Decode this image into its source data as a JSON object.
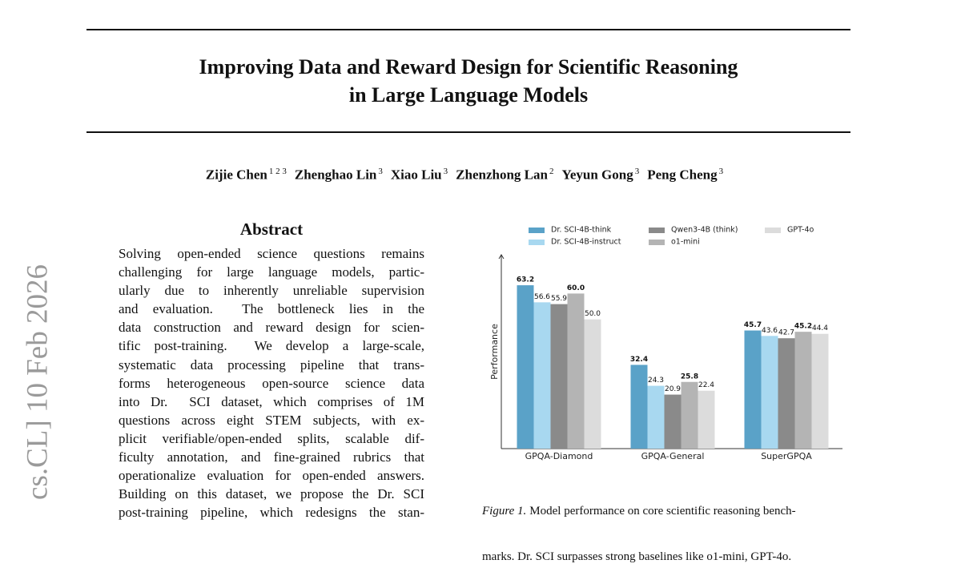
{
  "side_stamp": "cs.CL]  10 Feb 2026",
  "header": {
    "title": [
      "Improving Data and Reward Design for Scientific Reasoning",
      "in Large Language Models"
    ]
  },
  "authors": [
    {
      "name": "Zijie Chen",
      "affil": "1 2 3"
    },
    {
      "name": "Zhenghao Lin",
      "affil": "3"
    },
    {
      "name": "Xiao Liu",
      "affil": "3"
    },
    {
      "name": "Zhenzhong Lan",
      "affil": "2"
    },
    {
      "name": "Yeyun Gong",
      "affil": "3"
    },
    {
      "name": "Peng Cheng",
      "affil": "3"
    }
  ],
  "abstract": {
    "heading": "Abstract",
    "lines": [
      "Solving open-ended science questions remains",
      "challenging for large language models, partic-",
      "ularly due to inherently unreliable supervision",
      "and evaluation.  The bottleneck lies in the",
      "data construction and reward design for scien-",
      "tific post-training.  We develop a large-scale,",
      "systematic data processing pipeline that trans-",
      "forms heterogeneous open-source science data",
      "into Dr.  SCI dataset, which comprises of 1M",
      "questions across eight STEM subjects, with ex-",
      "plicit verifiable/open-ended splits, scalable dif-",
      "ficulty annotation, and fine-grained rubrics that",
      "operationalize evaluation for open-ended answers.",
      "Building on this dataset, we propose the Dr. SCI",
      "post-training pipeline, which redesigns the stan-"
    ]
  },
  "figure": {
    "chart_data": {
      "type": "bar",
      "y_label": "Performance",
      "categories": [
        "GPQA-Diamond",
        "GPQA-General",
        "SuperGPQA"
      ],
      "ylim": [
        0,
        75
      ],
      "series": [
        {
          "name": "Dr. SCI-4B-think",
          "color": "#5aa2c8",
          "bold": true,
          "values": [
            63.2,
            32.4,
            45.7
          ],
          "value_labels": [
            "63.2",
            "32.4",
            "45.7"
          ]
        },
        {
          "name": "Dr. SCI-4B-instruct",
          "color": "#a8d8f0",
          "bold": false,
          "values": [
            56.6,
            24.3,
            43.6
          ],
          "value_labels": [
            "56.6",
            "24.3",
            "43.6"
          ]
        },
        {
          "name": "Qwen3-4B (think)",
          "color": "#8a8a8a",
          "bold": false,
          "values": [
            55.9,
            20.9,
            42.7
          ],
          "value_labels": [
            "55.9",
            "20.9",
            "42.7"
          ]
        },
        {
          "name": "o1-mini",
          "color": "#b4b4b4",
          "bold": true,
          "values": [
            60.0,
            25.8,
            45.2
          ],
          "value_labels": [
            "60.0",
            "25.8",
            "45.2"
          ]
        },
        {
          "name": "GPT-4o",
          "color": "#dcdcdc",
          "bold": false,
          "values": [
            50.0,
            22.4,
            44.4
          ],
          "value_labels": [
            "50.0",
            "22.4",
            "44.4"
          ]
        }
      ]
    },
    "caption": {
      "label": "Figure 1.",
      "lines": [
        "Model performance on core scientific reasoning bench-",
        "marks. Dr. SCI surpasses strong baselines like o1-mini, GPT-4o."
      ]
    }
  }
}
